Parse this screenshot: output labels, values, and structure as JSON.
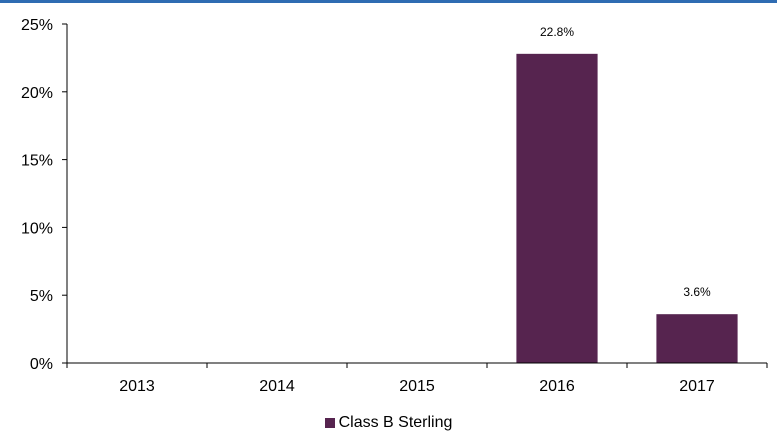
{
  "chart_data": {
    "type": "bar",
    "categories": [
      "2013",
      "2014",
      "2015",
      "2016",
      "2017"
    ],
    "series": [
      {
        "name": "Class B Sterling",
        "values": [
          0,
          0,
          0,
          22.8,
          3.6
        ],
        "color": "#56244f"
      }
    ],
    "data_labels": [
      "",
      "",
      "",
      "22.8%",
      "3.6%"
    ],
    "y_ticks": [
      "0%",
      "5%",
      "10%",
      "15%",
      "20%",
      "25%"
    ],
    "ylim": [
      0,
      25
    ],
    "grid": false,
    "legend_position": "bottom-center",
    "title": "",
    "xlabel": "",
    "ylabel": ""
  },
  "colors": {
    "top_rule": "#2f6cb2",
    "axis": "#000000"
  }
}
